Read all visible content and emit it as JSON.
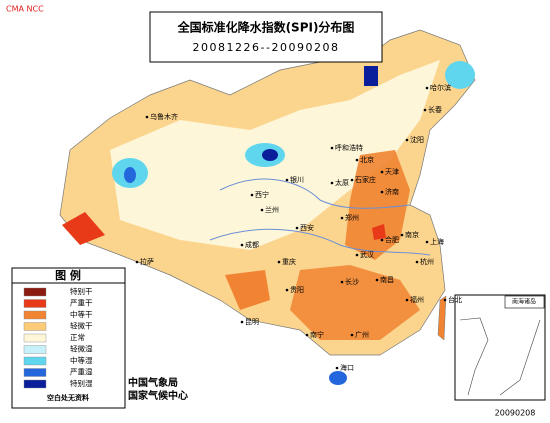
{
  "header": {
    "watermark": "CMA NCC",
    "title": "全国标准化降水指数(SPI)分布图",
    "subtitle": "20081226--20090208"
  },
  "legend": {
    "title": "图  例",
    "items": [
      {
        "label": "特别干",
        "color": "#8b1a10"
      },
      {
        "label": "严重干",
        "color": "#e83a18"
      },
      {
        "label": "中等干",
        "color": "#f08432"
      },
      {
        "label": "轻微干",
        "color": "#fbcb78"
      },
      {
        "label": "正常",
        "color": "#fdf6d8"
      },
      {
        "label": "轻微湿",
        "color": "#c6f1f8"
      },
      {
        "label": "中等湿",
        "color": "#5fd5ee"
      },
      {
        "label": "严重湿",
        "color": "#2466dc"
      },
      {
        "label": "特别湿",
        "color": "#0a1e9c"
      }
    ],
    "note": "空白处无资料"
  },
  "credits": [
    "中国气象局",
    "国家气候中心"
  ],
  "inset": "南海诸岛",
  "date": "20090208",
  "cities": [
    "乌鲁木齐",
    "哈尔滨",
    "长春",
    "呼和浩特",
    "北京",
    "天津",
    "沈阳",
    "太原",
    "石家庄",
    "济南",
    "银川",
    "西宁",
    "兰州",
    "西安",
    "郑州",
    "合肥",
    "南京",
    "上海",
    "武汉",
    "成都",
    "重庆",
    "拉萨",
    "长沙",
    "南昌",
    "杭州",
    "福州",
    "贵阳",
    "昆明",
    "南宁",
    "广州",
    "台北",
    "海口"
  ]
}
